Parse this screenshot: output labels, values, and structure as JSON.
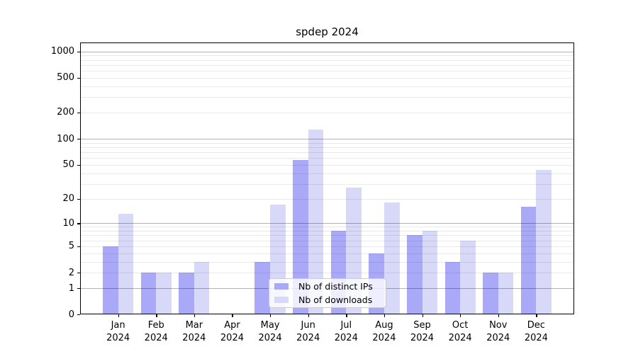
{
  "chart_data": {
    "type": "bar",
    "title": "spdep 2024",
    "categories": [
      "Jan",
      "Feb",
      "Mar",
      "Apr",
      "May",
      "Jun",
      "Jul",
      "Aug",
      "Sep",
      "Oct",
      "Nov",
      "Dec"
    ],
    "category_year": "2024",
    "series": [
      {
        "name": "Nb of distinct IPs",
        "color": "#a9a9f8",
        "values": [
          5,
          2,
          2,
          0,
          3,
          57,
          8,
          4,
          7,
          3,
          2,
          16
        ]
      },
      {
        "name": "Nb of downloads",
        "color": "#d8d8f8",
        "values": [
          13,
          2,
          3,
          0,
          17,
          127,
          27,
          18,
          8,
          6,
          2,
          44
        ]
      }
    ],
    "yscale": "log1p",
    "ylim": [
      0,
      1265
    ],
    "yticks": [
      0,
      1,
      2,
      5,
      10,
      20,
      50,
      100,
      200,
      500,
      1000
    ],
    "major_gridlines": [
      1,
      10,
      100,
      1000
    ],
    "minor_gridlines": [
      2,
      3,
      4,
      5,
      6,
      7,
      8,
      9,
      20,
      30,
      40,
      50,
      60,
      70,
      80,
      90,
      200,
      300,
      400,
      500,
      600,
      700,
      800,
      900
    ],
    "grid": true,
    "legend_position": "inside-bottom-center",
    "xlabel": "",
    "ylabel": ""
  },
  "colors": {
    "axis": "#000000",
    "major_grid": "#b3b3b3",
    "minor_grid": "#e9e9e9",
    "legend_border": "#cccccc",
    "text": "#000000"
  }
}
